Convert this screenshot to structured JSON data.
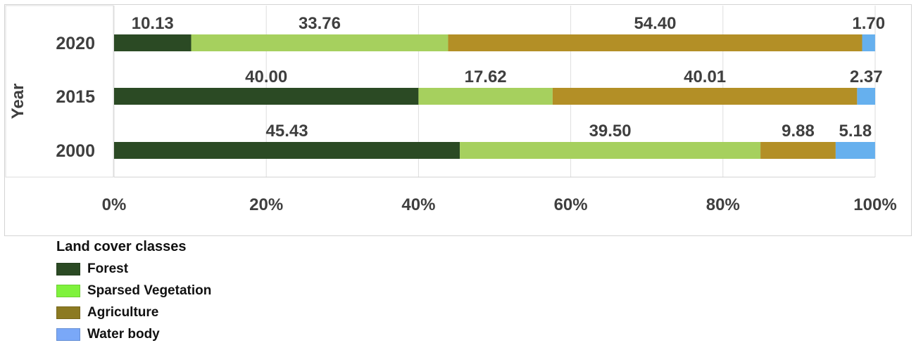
{
  "chart_data": {
    "type": "bar",
    "orientation": "horizontal",
    "stacked": "percent",
    "ylabel": "Year",
    "categories": [
      "2020",
      "2015",
      "2000"
    ],
    "x_ticks": [
      "0%",
      "20%",
      "40%",
      "60%",
      "80%",
      "100%"
    ],
    "xlim": [
      0,
      100
    ],
    "grid": true,
    "legend_placement": "bottom-left",
    "legend_title": "Land cover classes",
    "series": [
      {
        "name": "Forest",
        "color": "#2b4a24",
        "values": [
          10.13,
          40.0,
          45.43
        ],
        "labels": [
          "10.13",
          "40.00",
          "45.43"
        ]
      },
      {
        "name": "Sparsed Vegetation",
        "color": "#a6d05e",
        "legend_color": "#7ff23c",
        "values": [
          33.76,
          17.62,
          39.5
        ],
        "labels": [
          "33.76",
          "17.62",
          "39.50"
        ]
      },
      {
        "name": "Agriculture",
        "color": "#b38f26",
        "legend_color": "#8c7a22",
        "values": [
          54.4,
          40.01,
          9.88
        ],
        "labels": [
          "54.40",
          "40.01",
          "9.88"
        ]
      },
      {
        "name": "Water body",
        "color": "#66b0ee",
        "legend_color": "#7aa8f8",
        "values": [
          1.7,
          2.37,
          5.18
        ],
        "labels": [
          "1.70",
          "2.37",
          "5.18"
        ]
      }
    ]
  }
}
